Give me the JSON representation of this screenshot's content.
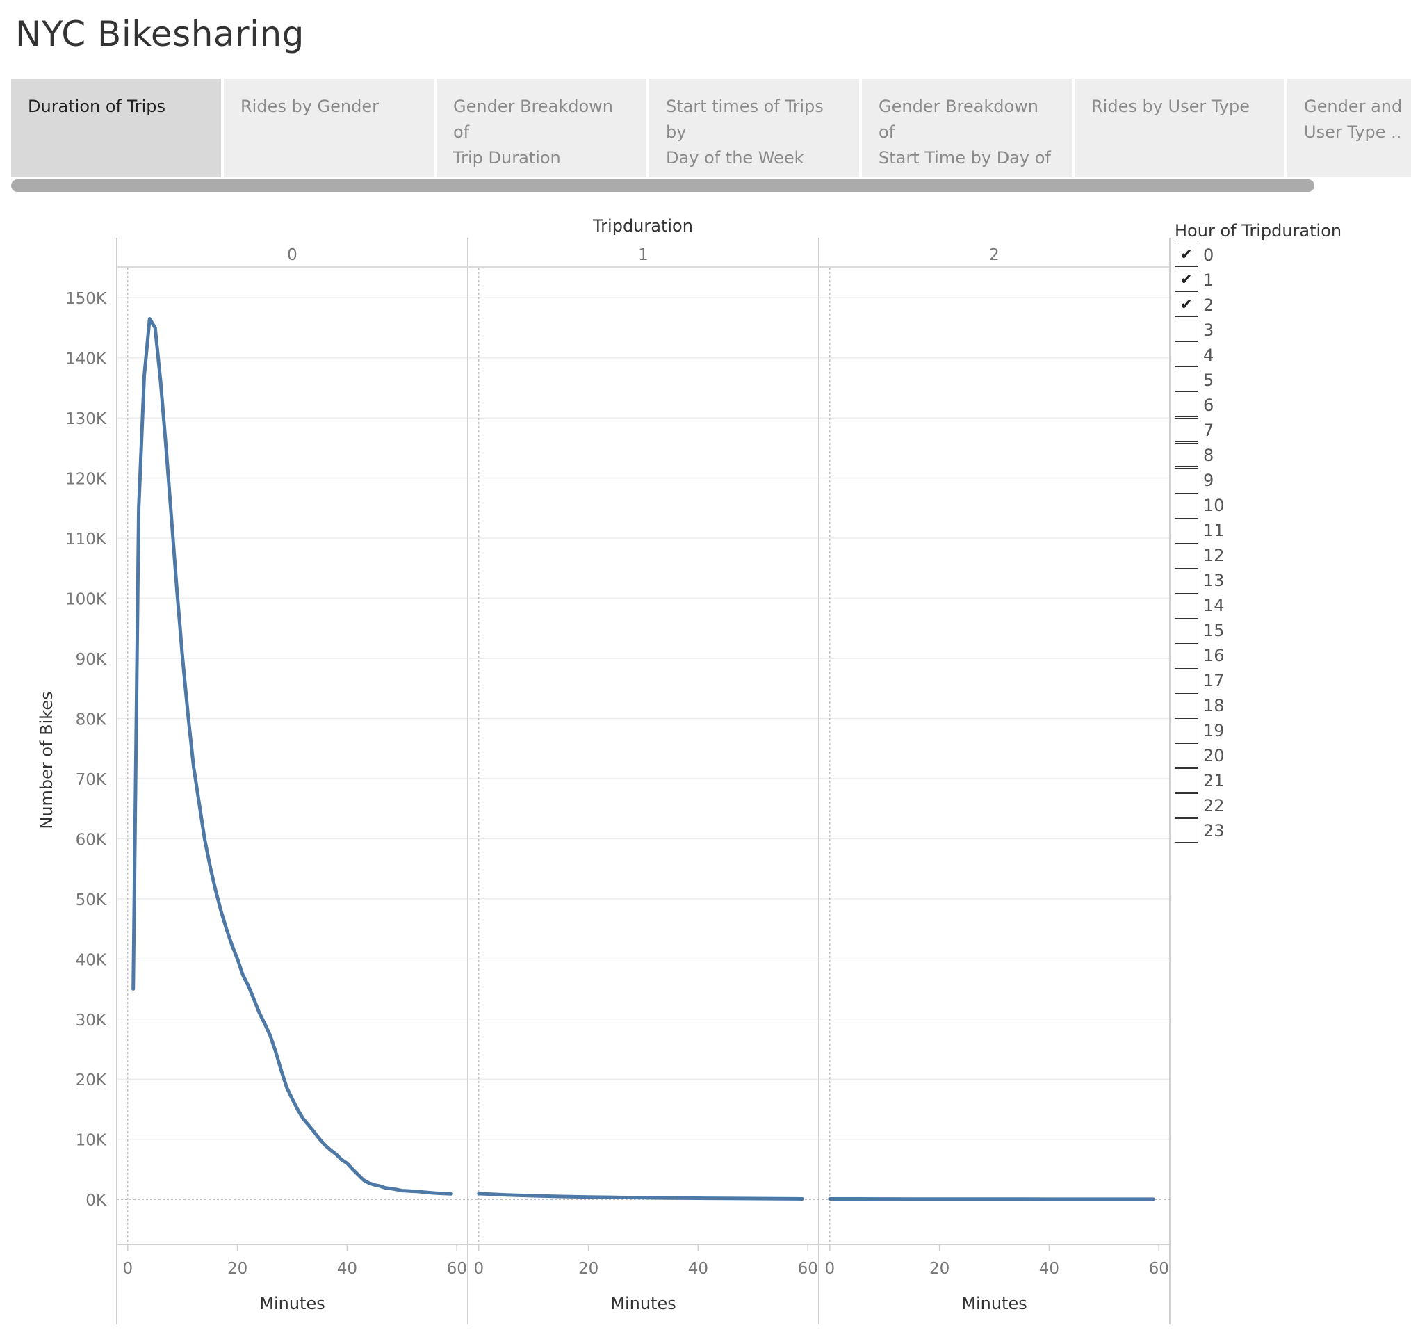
{
  "app": {
    "title": "NYC Bikesharing"
  },
  "tabs": [
    {
      "label_line1": "Duration of Trips",
      "label_line2": "",
      "active": true
    },
    {
      "label_line1": "Rides by Gender",
      "label_line2": "",
      "active": false
    },
    {
      "label_line1": "Gender Breakdown of",
      "label_line2": "Trip Duration",
      "active": false
    },
    {
      "label_line1": "Start times of Trips by",
      "label_line2": "Day of the Week",
      "active": false
    },
    {
      "label_line1": "Gender Breakdown of",
      "label_line2": "Start Time by Day of t..",
      "active": false
    },
    {
      "label_line1": "Rides by User Type",
      "label_line2": "",
      "active": false
    },
    {
      "label_line1": "Gender and",
      "label_line2": "User Type ..",
      "active": false
    }
  ],
  "legend": {
    "title": "Hour of Tripduration",
    "items": [
      {
        "label": "0",
        "checked": true
      },
      {
        "label": "1",
        "checked": true
      },
      {
        "label": "2",
        "checked": true
      },
      {
        "label": "3",
        "checked": false
      },
      {
        "label": "4",
        "checked": false
      },
      {
        "label": "5",
        "checked": false
      },
      {
        "label": "6",
        "checked": false
      },
      {
        "label": "7",
        "checked": false
      },
      {
        "label": "8",
        "checked": false
      },
      {
        "label": "9",
        "checked": false
      },
      {
        "label": "10",
        "checked": false
      },
      {
        "label": "11",
        "checked": false
      },
      {
        "label": "12",
        "checked": false
      },
      {
        "label": "13",
        "checked": false
      },
      {
        "label": "14",
        "checked": false
      },
      {
        "label": "15",
        "checked": false
      },
      {
        "label": "16",
        "checked": false
      },
      {
        "label": "17",
        "checked": false
      },
      {
        "label": "18",
        "checked": false
      },
      {
        "label": "19",
        "checked": false
      },
      {
        "label": "20",
        "checked": false
      },
      {
        "label": "21",
        "checked": false
      },
      {
        "label": "22",
        "checked": false
      },
      {
        "label": "23",
        "checked": false
      }
    ]
  },
  "chart_data": {
    "type": "line",
    "title": "",
    "facet_label": "Tripduration",
    "xlabel": "Minutes",
    "ylabel": "Number of Bikes",
    "xlim": [
      -2,
      62
    ],
    "ylim": [
      -7500,
      155000
    ],
    "x_ticks": [
      0,
      20,
      40,
      60
    ],
    "y_ticks": [
      0,
      10000,
      20000,
      30000,
      40000,
      50000,
      60000,
      70000,
      80000,
      90000,
      100000,
      110000,
      120000,
      130000,
      140000,
      150000
    ],
    "y_tick_labels": [
      "0K",
      "10K",
      "20K",
      "30K",
      "40K",
      "50K",
      "60K",
      "70K",
      "80K",
      "90K",
      "100K",
      "110K",
      "120K",
      "130K",
      "140K",
      "150K"
    ],
    "grid": true,
    "line_color": "#4e79a7",
    "panels": [
      {
        "name": "0",
        "x": [
          1,
          2,
          3,
          4,
          5,
          6,
          7,
          8,
          9,
          10,
          11,
          12,
          13,
          14,
          15,
          16,
          17,
          18,
          19,
          20,
          21,
          22,
          23,
          24,
          25,
          26,
          27,
          28,
          29,
          30,
          31,
          32,
          33,
          34,
          35,
          36,
          37,
          38,
          39,
          40,
          41,
          42,
          43,
          44,
          45,
          46,
          47,
          48,
          49,
          50,
          51,
          52,
          53,
          54,
          55,
          56,
          57,
          58,
          59
        ],
        "y": [
          35000,
          115000,
          137000,
          146500,
          145000,
          136000,
          125000,
          113000,
          101000,
          90000,
          80500,
          72000,
          66000,
          60000,
          55500,
          51500,
          48000,
          45000,
          42300,
          40000,
          37300,
          35500,
          33300,
          31000,
          29200,
          27200,
          24500,
          21400,
          18600,
          16700,
          14900,
          13400,
          12300,
          11200,
          10000,
          9000,
          8200,
          7500,
          6600,
          6000,
          5000,
          4100,
          3200,
          2700,
          2400,
          2200,
          1900,
          1800,
          1650,
          1450,
          1400,
          1350,
          1300,
          1200,
          1120,
          1050,
          1000,
          960,
          920
        ]
      },
      {
        "name": "1",
        "x": [
          0,
          5,
          10,
          15,
          20,
          25,
          30,
          35,
          40,
          45,
          50,
          55,
          59
        ],
        "y": [
          950,
          750,
          600,
          480,
          400,
          330,
          280,
          230,
          190,
          160,
          130,
          100,
          80
        ]
      },
      {
        "name": "2",
        "x": [
          0,
          5,
          10,
          15,
          20,
          25,
          30,
          35,
          40,
          45,
          50,
          55,
          59
        ],
        "y": [
          75,
          70,
          60,
          55,
          50,
          45,
          40,
          38,
          35,
          32,
          30,
          28,
          25
        ]
      }
    ]
  }
}
